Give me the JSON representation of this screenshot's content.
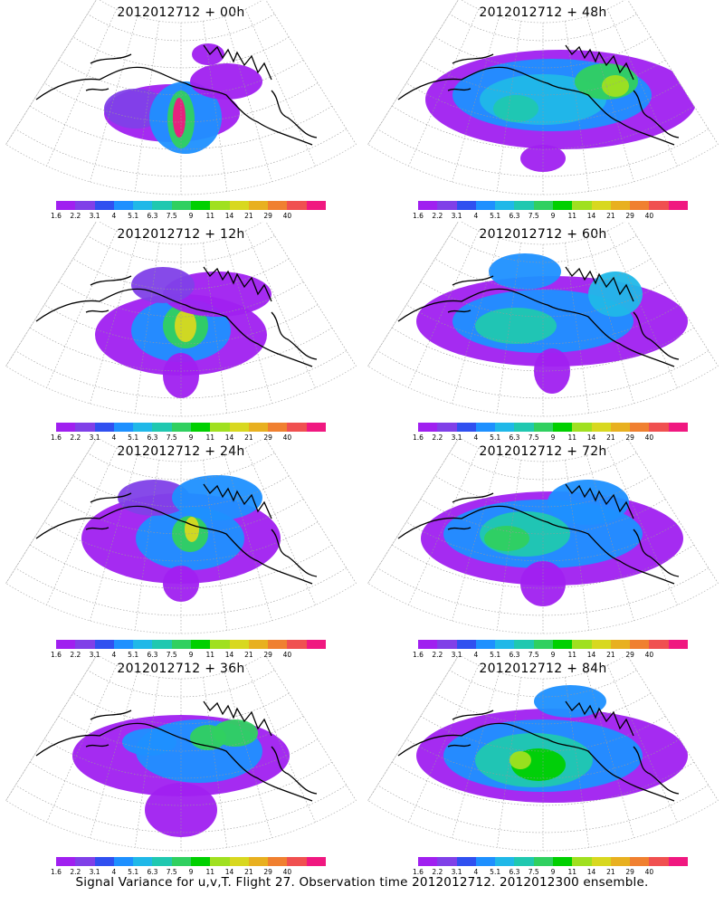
{
  "panels": [
    {
      "title": "2012012712 + 00h",
      "lead": "00h"
    },
    {
      "title": "2012012712 + 48h",
      "lead": "48h"
    },
    {
      "title": "2012012712 + 12h",
      "lead": "12h"
    },
    {
      "title": "2012012712 + 60h",
      "lead": "60h"
    },
    {
      "title": "2012012712 + 24h",
      "lead": "24h"
    },
    {
      "title": "2012012712 + 72h",
      "lead": "72h"
    },
    {
      "title": "2012012712 + 36h",
      "lead": "36h"
    },
    {
      "title": "2012012712 + 84h",
      "lead": "84h"
    }
  ],
  "colorbar": {
    "tick_labels": [
      "1.6",
      "2.2",
      "3.1",
      "4",
      "5.1",
      "6.3",
      "7.5",
      "9",
      "11",
      "14",
      "21",
      "29",
      "40"
    ],
    "colors": [
      "#a020f0",
      "#8040e8",
      "#3050f0",
      "#1e90ff",
      "#20b8e8",
      "#20c8b0",
      "#30d060",
      "#00d000",
      "#a0e020",
      "#d8d820",
      "#e8b020",
      "#f08030",
      "#f05050",
      "#f01880"
    ]
  },
  "footer": "Signal Variance for u,v,T. Flight 27. Observation time 2012012712. 2012012300 ensemble."
}
